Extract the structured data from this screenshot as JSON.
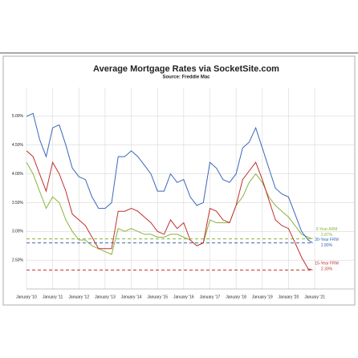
{
  "chart_data": {
    "type": "line",
    "title": "Average Mortgage Rates via SocketSite.com",
    "subtitle": "Source: Freddie Mac",
    "x": [
      2010,
      2010.25,
      2010.5,
      2010.75,
      2011,
      2011.25,
      2011.5,
      2011.75,
      2012,
      2012.25,
      2012.5,
      2012.75,
      2013,
      2013.25,
      2013.5,
      2013.75,
      2014,
      2014.25,
      2014.5,
      2014.75,
      2015,
      2015.25,
      2015.5,
      2015.75,
      2016,
      2016.25,
      2016.5,
      2016.75,
      2017,
      2017.25,
      2017.5,
      2017.75,
      2018,
      2018.25,
      2018.5,
      2018.75,
      2019,
      2019.25,
      2019.5,
      2019.75,
      2020,
      2020.25,
      2020.5,
      2020.75,
      2020.92
    ],
    "series": [
      {
        "name": "5-Year ARM",
        "color": "#8ab43c",
        "final_value": 2.87,
        "final_label": "2.87%",
        "values": [
          4.2,
          4.0,
          3.7,
          3.4,
          3.6,
          3.5,
          3.2,
          3.0,
          2.85,
          2.85,
          2.75,
          2.7,
          2.65,
          2.6,
          3.05,
          3.0,
          3.05,
          3.0,
          2.95,
          2.95,
          2.9,
          2.9,
          2.95,
          2.95,
          2.9,
          2.85,
          2.75,
          2.8,
          3.2,
          3.15,
          3.15,
          3.15,
          3.45,
          3.6,
          3.85,
          4.0,
          3.85,
          3.6,
          3.45,
          3.35,
          3.25,
          3.1,
          2.95,
          2.9,
          2.87
        ]
      },
      {
        "name": "30-Year FRM",
        "color": "#3a66b8",
        "final_value": 2.8,
        "final_label": "2.80%",
        "values": [
          5.0,
          5.05,
          4.6,
          4.3,
          4.8,
          4.85,
          4.5,
          4.1,
          3.95,
          3.9,
          3.6,
          3.4,
          3.4,
          3.5,
          4.3,
          4.3,
          4.4,
          4.3,
          4.15,
          4.0,
          3.7,
          3.7,
          4.0,
          3.85,
          3.9,
          3.6,
          3.45,
          3.5,
          4.2,
          4.1,
          3.9,
          3.85,
          4.0,
          4.45,
          4.55,
          4.8,
          4.45,
          4.1,
          3.75,
          3.65,
          3.6,
          3.3,
          3.0,
          2.85,
          2.8
        ]
      },
      {
        "name": "15-Year FRM",
        "color": "#c0302e",
        "final_value": 2.33,
        "final_label": "2.33%",
        "values": [
          4.4,
          4.3,
          4.0,
          3.7,
          4.2,
          4.0,
          3.7,
          3.3,
          3.2,
          3.1,
          2.9,
          2.7,
          2.7,
          2.7,
          3.35,
          3.35,
          3.4,
          3.35,
          3.25,
          3.15,
          3.0,
          2.95,
          3.2,
          3.05,
          3.15,
          2.85,
          2.75,
          2.8,
          3.4,
          3.35,
          3.2,
          3.15,
          3.45,
          3.9,
          4.05,
          4.2,
          3.9,
          3.55,
          3.2,
          3.1,
          3.05,
          2.8,
          2.55,
          2.35,
          2.33
        ]
      }
    ],
    "xlim": [
      2010,
      2022.5
    ],
    "xticks": [
      {
        "value": 2010,
        "label": "January '10"
      },
      {
        "value": 2011,
        "label": "January '11"
      },
      {
        "value": 2012,
        "label": "January '12"
      },
      {
        "value": 2013,
        "label": "January '13"
      },
      {
        "value": 2014,
        "label": "January '14"
      },
      {
        "value": 2015,
        "label": "January '15"
      },
      {
        "value": 2016,
        "label": "January '16"
      },
      {
        "value": 2017,
        "label": "January '17"
      },
      {
        "value": 2018,
        "label": "January '18"
      },
      {
        "value": 2019,
        "label": "January '19"
      },
      {
        "value": 2020,
        "label": "January '20"
      },
      {
        "value": 2021,
        "label": "January '21"
      }
    ],
    "ylim": [
      2.0,
      5.5
    ],
    "yticks": [
      {
        "value": 2.5,
        "label": "2.50%"
      },
      {
        "value": 3,
        "label": "3.00%"
      },
      {
        "value": 3.5,
        "label": "3.50%"
      },
      {
        "value": 4,
        "label": "4.00%"
      },
      {
        "value": 4.5,
        "label": "4.50%"
      },
      {
        "value": 5,
        "label": "5.00%"
      }
    ],
    "grid": true
  }
}
